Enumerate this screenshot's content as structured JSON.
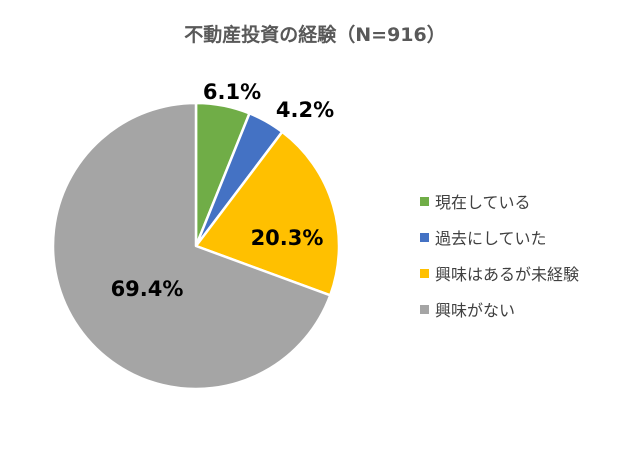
{
  "chart_data": {
    "type": "pie",
    "title": "不動産投資の経験（N=916）",
    "slices": [
      {
        "label": "現在している",
        "value": 6.1,
        "display": "6.1%",
        "color": "#70ad47"
      },
      {
        "label": "過去にしていた",
        "value": 4.2,
        "display": "4.2%",
        "color": "#4472c4"
      },
      {
        "label": "興味はあるが未経験",
        "value": 20.3,
        "display": "20.3%",
        "color": "#ffc000"
      },
      {
        "label": "興味がない",
        "value": 69.4,
        "display": "69.4%",
        "color": "#a5a5a5"
      }
    ],
    "legend_position": "right"
  }
}
